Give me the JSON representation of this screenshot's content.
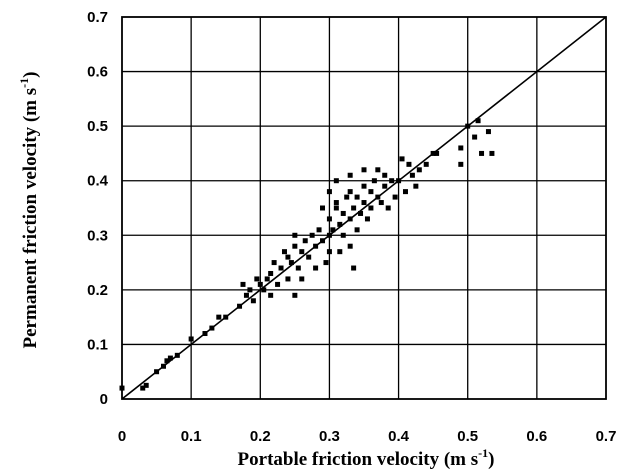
{
  "chart_data": {
    "type": "scatter",
    "xlabel": "Portable friction velocity (m s-1)",
    "ylabel": "Permanent friction velocity (m s-1)",
    "xlabel_parts": {
      "main": "Portable friction velocity (m s",
      "sup": "-1",
      "close": ")"
    },
    "ylabel_parts": {
      "main": "Permanent friction velocity (m s",
      "sup": "-1",
      "close": ")"
    },
    "xlim": [
      0,
      0.7
    ],
    "ylim": [
      0,
      0.7
    ],
    "x_ticks": [
      "0",
      "0.1",
      "0.2",
      "0.3",
      "0.4",
      "0.5",
      "0.6",
      "0.7"
    ],
    "y_ticks": [
      "0",
      "0.1",
      "0.2",
      "0.3",
      "0.4",
      "0.5",
      "0.6",
      "0.7"
    ],
    "grid": true,
    "reference_line": {
      "type": "1:1",
      "from": [
        0,
        0
      ],
      "to": [
        0.7,
        0.7
      ]
    },
    "marker": "square",
    "marker_color": "#000000",
    "points": [
      [
        0.0,
        0.02
      ],
      [
        0.03,
        0.02
      ],
      [
        0.035,
        0.025
      ],
      [
        0.05,
        0.05
      ],
      [
        0.06,
        0.06
      ],
      [
        0.065,
        0.07
      ],
      [
        0.07,
        0.075
      ],
      [
        0.08,
        0.08
      ],
      [
        0.1,
        0.11
      ],
      [
        0.12,
        0.12
      ],
      [
        0.13,
        0.13
      ],
      [
        0.14,
        0.15
      ],
      [
        0.15,
        0.15
      ],
      [
        0.17,
        0.17
      ],
      [
        0.175,
        0.21
      ],
      [
        0.18,
        0.19
      ],
      [
        0.185,
        0.2
      ],
      [
        0.19,
        0.18
      ],
      [
        0.195,
        0.22
      ],
      [
        0.2,
        0.21
      ],
      [
        0.205,
        0.2
      ],
      [
        0.21,
        0.22
      ],
      [
        0.215,
        0.23
      ],
      [
        0.215,
        0.19
      ],
      [
        0.22,
        0.25
      ],
      [
        0.225,
        0.21
      ],
      [
        0.23,
        0.24
      ],
      [
        0.235,
        0.27
      ],
      [
        0.24,
        0.22
      ],
      [
        0.24,
        0.26
      ],
      [
        0.245,
        0.25
      ],
      [
        0.25,
        0.28
      ],
      [
        0.25,
        0.3
      ],
      [
        0.255,
        0.24
      ],
      [
        0.26,
        0.27
      ],
      [
        0.265,
        0.29
      ],
      [
        0.27,
        0.26
      ],
      [
        0.275,
        0.3
      ],
      [
        0.28,
        0.28
      ],
      [
        0.285,
        0.31
      ],
      [
        0.29,
        0.29
      ],
      [
        0.29,
        0.35
      ],
      [
        0.295,
        0.25
      ],
      [
        0.3,
        0.3
      ],
      [
        0.3,
        0.33
      ],
      [
        0.305,
        0.31
      ],
      [
        0.31,
        0.35
      ],
      [
        0.31,
        0.36
      ],
      [
        0.315,
        0.32
      ],
      [
        0.32,
        0.3
      ],
      [
        0.32,
        0.34
      ],
      [
        0.325,
        0.37
      ],
      [
        0.33,
        0.41
      ],
      [
        0.33,
        0.33
      ],
      [
        0.335,
        0.35
      ],
      [
        0.34,
        0.31
      ],
      [
        0.34,
        0.37
      ],
      [
        0.345,
        0.34
      ],
      [
        0.35,
        0.36
      ],
      [
        0.35,
        0.39
      ],
      [
        0.355,
        0.33
      ],
      [
        0.36,
        0.38
      ],
      [
        0.36,
        0.35
      ],
      [
        0.365,
        0.4
      ],
      [
        0.37,
        0.37
      ],
      [
        0.37,
        0.42
      ],
      [
        0.375,
        0.36
      ],
      [
        0.38,
        0.39
      ],
      [
        0.385,
        0.35
      ],
      [
        0.39,
        0.4
      ],
      [
        0.395,
        0.37
      ],
      [
        0.4,
        0.4
      ],
      [
        0.405,
        0.44
      ],
      [
        0.41,
        0.38
      ],
      [
        0.415,
        0.43
      ],
      [
        0.42,
        0.41
      ],
      [
        0.425,
        0.39
      ],
      [
        0.43,
        0.42
      ],
      [
        0.44,
        0.43
      ],
      [
        0.45,
        0.45
      ],
      [
        0.455,
        0.45
      ],
      [
        0.49,
        0.43
      ],
      [
        0.49,
        0.46
      ],
      [
        0.5,
        0.5
      ],
      [
        0.51,
        0.48
      ],
      [
        0.515,
        0.51
      ],
      [
        0.52,
        0.45
      ],
      [
        0.53,
        0.49
      ],
      [
        0.535,
        0.45
      ],
      [
        0.25,
        0.19
      ],
      [
        0.26,
        0.22
      ],
      [
        0.28,
        0.24
      ],
      [
        0.3,
        0.27
      ],
      [
        0.315,
        0.27
      ],
      [
        0.33,
        0.28
      ],
      [
        0.335,
        0.24
      ],
      [
        0.3,
        0.38
      ],
      [
        0.31,
        0.4
      ],
      [
        0.33,
        0.38
      ],
      [
        0.35,
        0.42
      ],
      [
        0.38,
        0.41
      ]
    ]
  }
}
